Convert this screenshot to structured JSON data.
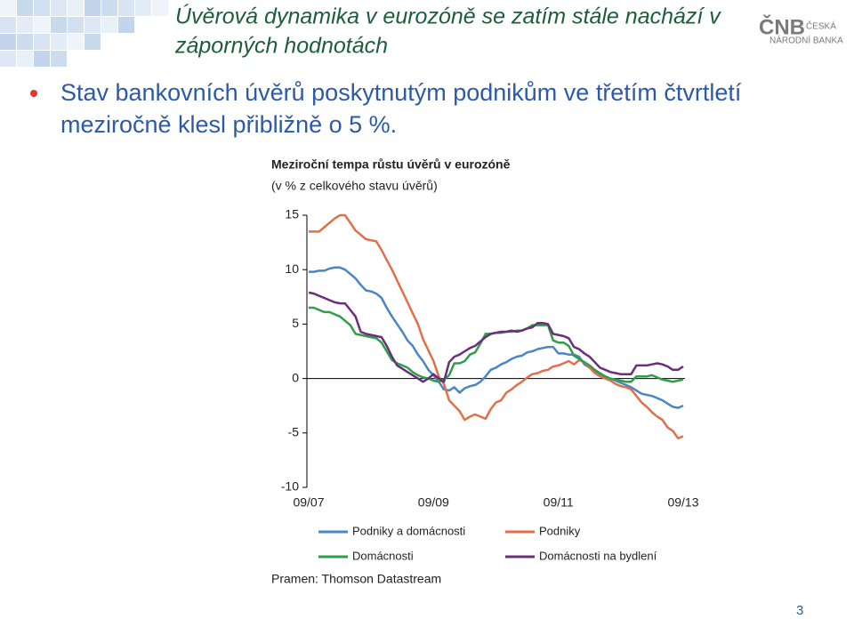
{
  "slide": {
    "title": [
      "Úvěrová dynamika v eurozóně se zatím stále nachází v",
      "záporných hodnotách"
    ],
    "bullet": [
      "Stav bankovních úvěrů poskytnutým podnikům ve třetím čtvrtletí",
      "meziročně klesl přibližně o 5 %."
    ],
    "logo": {
      "mark": "ČNB",
      "line1": "ČESKÁ",
      "line2": "NÁRODNÍ BANKA"
    },
    "source": "Pramen: Thomson Datastream",
    "page": "3"
  },
  "chart_data": {
    "type": "line",
    "title": "Meziroční tempa růstu úvěrů v eurozóně",
    "subtitle": "(v % z celkového stavu úvěrů)",
    "categories": [
      "09/07",
      null,
      null,
      null,
      null,
      null,
      null,
      null,
      null,
      null,
      null,
      null,
      null,
      null,
      null,
      null,
      null,
      null,
      null,
      null,
      null,
      null,
      null,
      null,
      "09/09",
      null,
      null,
      null,
      null,
      null,
      null,
      null,
      null,
      null,
      null,
      null,
      null,
      null,
      null,
      null,
      null,
      null,
      null,
      null,
      null,
      null,
      null,
      null,
      "09/11",
      null,
      null,
      null,
      null,
      null,
      null,
      null,
      null,
      null,
      null,
      null,
      null,
      null,
      null,
      null,
      null,
      null,
      null,
      null,
      null,
      null,
      null,
      null,
      "09/13"
    ],
    "ylim": [
      -10,
      15
    ],
    "yticks": [
      15,
      10,
      5,
      0,
      -5,
      -10
    ],
    "grid": false,
    "series": [
      {
        "name": "Podniky a domácnosti",
        "color": "#4a86c5",
        "values": [
          9.8,
          9.8,
          9.9,
          9.9,
          10.1,
          10.2,
          10.2,
          10.0,
          9.6,
          9.2,
          8.6,
          8.1,
          8.0,
          7.8,
          7.4,
          6.5,
          5.7,
          5.0,
          4.3,
          3.5,
          3.0,
          2.2,
          1.6,
          0.8,
          0.3,
          -0.3,
          -1.0,
          -1.1,
          -0.8,
          -1.3,
          -0.9,
          -0.7,
          -0.6,
          -0.3,
          0.2,
          0.8,
          1.0,
          1.3,
          1.5,
          1.8,
          2.0,
          2.1,
          2.4,
          2.5,
          2.7,
          2.8,
          2.9,
          2.9,
          2.3,
          2.3,
          2.2,
          2.2,
          2.0,
          1.3,
          1.0,
          0.6,
          0.3,
          0.1,
          0,
          -0.2,
          -0.4,
          -0.6,
          -0.8,
          -1.1,
          -1.4,
          -1.5,
          -1.6,
          -1.8,
          -2.0,
          -2.3,
          -2.6,
          -2.7,
          -2.5
        ]
      },
      {
        "name": "Podniky",
        "color": "#e0704a",
        "values": [
          13.5,
          13.5,
          13.5,
          13.9,
          14.3,
          14.7,
          15.0,
          15.0,
          14.3,
          13.6,
          13.2,
          12.8,
          12.7,
          12.6,
          11.8,
          10.9,
          10.0,
          9.0,
          8.0,
          7.0,
          6.0,
          5.0,
          3.6,
          2.6,
          1.6,
          0.2,
          -0.5,
          -2.0,
          -2.5,
          -3.0,
          -3.8,
          -3.5,
          -3.3,
          -3.5,
          -3.7,
          -2.8,
          -2.2,
          -2.0,
          -1.3,
          -1.0,
          -0.6,
          -0.3,
          0.1,
          0.4,
          0.5,
          0.7,
          0.8,
          1.1,
          1.2,
          1.4,
          1.6,
          1.3,
          1.7,
          1.5,
          1.0,
          0.5,
          0.2,
          0,
          -0.2,
          -0.5,
          -0.7,
          -0.8,
          -1.0,
          -1.6,
          -2.2,
          -2.6,
          -3.1,
          -3.5,
          -3.8,
          -4.5,
          -4.8,
          -5.5,
          -5.3
        ]
      },
      {
        "name": "Domácnosti",
        "color": "#2e9e4a",
        "values": [
          6.5,
          6.5,
          6.3,
          6.1,
          6.1,
          5.9,
          5.7,
          5.3,
          4.9,
          4.1,
          4.0,
          3.9,
          3.8,
          3.7,
          3.3,
          2.5,
          1.7,
          1.4,
          1.2,
          1.0,
          0.6,
          0.3,
          0.1,
          0,
          -0.2,
          -0.3,
          -0.1,
          0.3,
          1.4,
          1.4,
          1.6,
          2.2,
          2.4,
          3.2,
          4.1,
          4.1,
          4.2,
          4.2,
          4.3,
          4.3,
          4.4,
          4.4,
          4.6,
          4.9,
          4.9,
          4.9,
          4.9,
          3.5,
          3.3,
          3.3,
          3.0,
          2.1,
          1.8,
          1.5,
          1.2,
          0.8,
          0.5,
          0.2,
          0,
          -0.1,
          -0.2,
          -0.3,
          -0.3,
          0.2,
          0.2,
          0.2,
          0.3,
          0.1,
          -0.1,
          -0.2,
          -0.3,
          -0.2,
          -0.1
        ]
      },
      {
        "name": "Domácnosti na bydlení",
        "color": "#6a2f7a",
        "values": [
          7.9,
          7.8,
          7.6,
          7.4,
          7.2,
          7.0,
          6.9,
          6.9,
          6.3,
          5.7,
          4.3,
          4.1,
          4.0,
          3.9,
          3.8,
          3.0,
          2.0,
          1.2,
          0.9,
          0.6,
          0.3,
          0,
          -0.3,
          0,
          0.4,
          0,
          -0.3,
          1.5,
          2.0,
          2.2,
          2.5,
          2.8,
          3.0,
          3.4,
          3.8,
          4.1,
          4.2,
          4.3,
          4.3,
          4.4,
          4.3,
          4.4,
          4.6,
          4.7,
          5.1,
          5.1,
          5.0,
          4.1,
          4.0,
          3.9,
          3.7,
          2.9,
          2.7,
          2.3,
          2.0,
          1.5,
          1.0,
          0.8,
          0.6,
          0.5,
          0.4,
          0.4,
          0.4,
          1.2,
          1.2,
          1.2,
          1.3,
          1.4,
          1.3,
          1.1,
          0.8,
          0.8,
          1.1
        ]
      }
    ]
  }
}
